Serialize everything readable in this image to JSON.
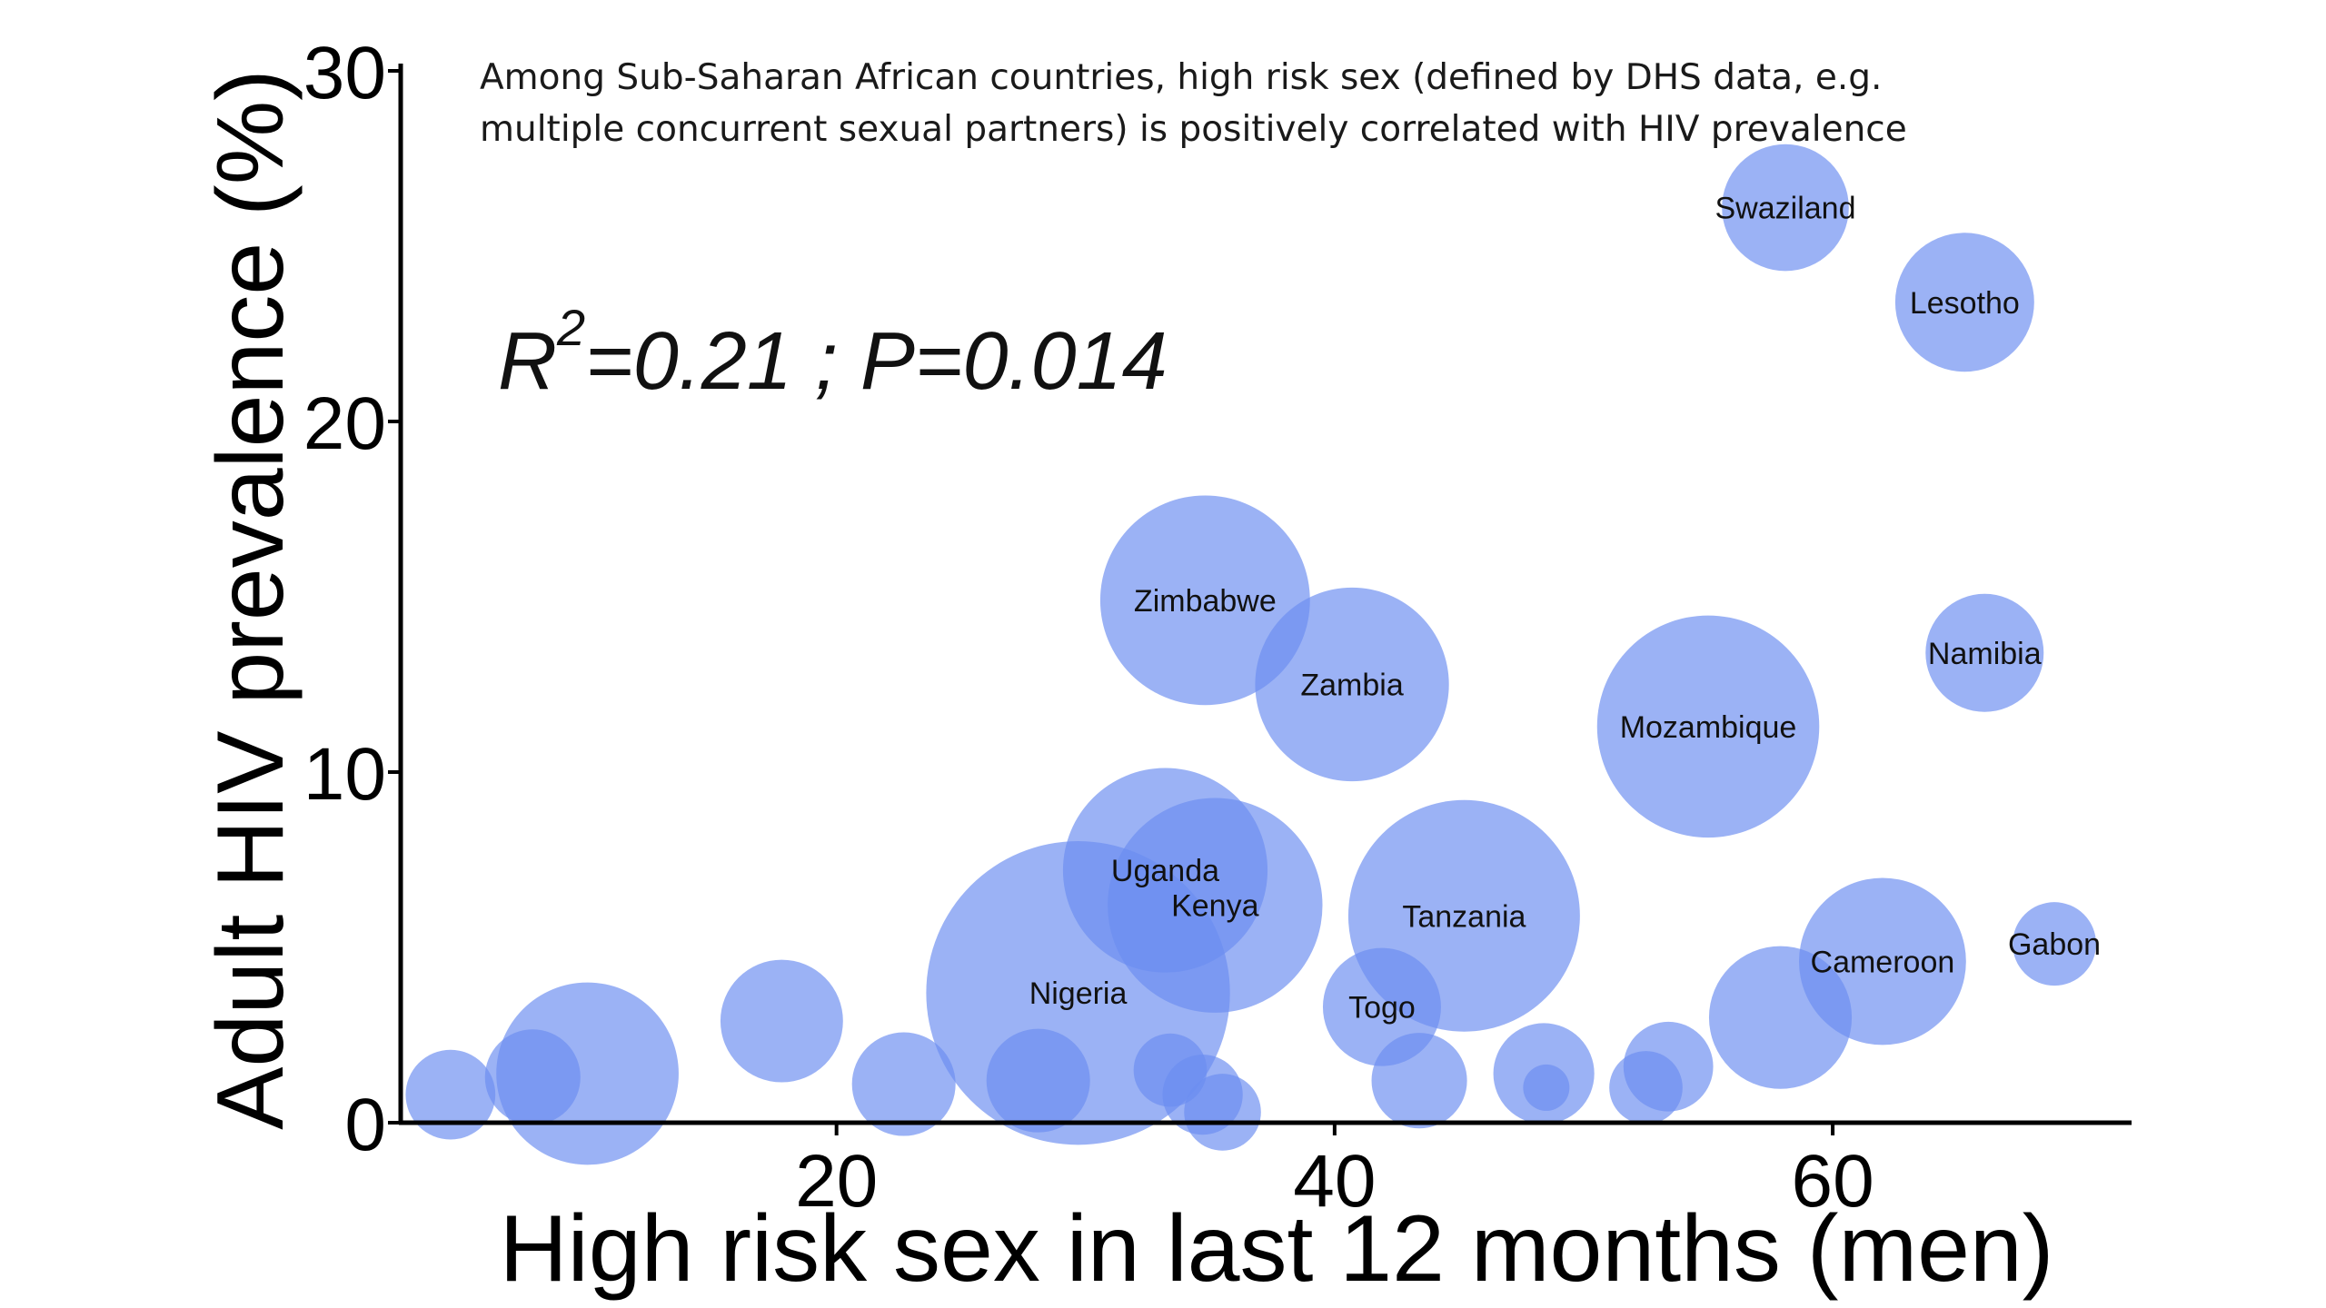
{
  "chart_data": {
    "type": "scatter",
    "title": "",
    "annotation_lines": [
      "Among Sub-Saharan African countries, high risk sex (defined by DHS data, e.g.",
      "multiple concurrent sexual partners) is positively correlated with HIV prevalence"
    ],
    "stat_r": "R",
    "stat_exp": "2",
    "stat_rest": "=0.21 ; P=0.014",
    "xlabel": "High risk sex in last 12 months (men)",
    "ylabel": "Adult HIV prevalence (%)",
    "xlim": [
      2.5,
      72
    ],
    "ylim": [
      0,
      30
    ],
    "x_ticks": [
      20,
      40,
      60
    ],
    "y_ticks": [
      0,
      10,
      20,
      30
    ],
    "bubble_color": "#6b8ef0",
    "bubble_opacity": 0.68,
    "points": [
      {
        "label": "Swaziland",
        "x": 58.1,
        "y": 26.1,
        "size": 1.5
      },
      {
        "label": "Lesotho",
        "x": 65.3,
        "y": 23.4,
        "size": 1.8
      },
      {
        "label": "Zimbabwe",
        "x": 34.8,
        "y": 14.9,
        "size": 4.1
      },
      {
        "label": "Zambia",
        "x": 40.7,
        "y": 12.5,
        "size": 3.5
      },
      {
        "label": "Mozambique",
        "x": 55.0,
        "y": 11.3,
        "size": 4.6
      },
      {
        "label": "Namibia",
        "x": 66.1,
        "y": 13.4,
        "size": 1.3
      },
      {
        "label": "Uganda",
        "x": 33.2,
        "y": 7.2,
        "size": 3.9
      },
      {
        "label": "Kenya",
        "x": 35.2,
        "y": 6.2,
        "size": 4.3
      },
      {
        "label": "Tanzania",
        "x": 45.2,
        "y": 5.9,
        "size": 5.0
      },
      {
        "label": "Nigeria",
        "x": 29.7,
        "y": 3.7,
        "size": 8.6
      },
      {
        "label": "Togo",
        "x": 41.9,
        "y": 3.3,
        "size": 1.3
      },
      {
        "label": "Cameroon",
        "x": 62.0,
        "y": 4.6,
        "size": 2.6
      },
      {
        "label": "Gabon",
        "x": 68.9,
        "y": 5.1,
        "size": 0.65
      },
      {
        "label": "",
        "x": 4.5,
        "y": 0.8,
        "size": 0.75
      },
      {
        "label": "",
        "x": 7.8,
        "y": 1.3,
        "size": 0.85
      },
      {
        "label": "",
        "x": 10.0,
        "y": 1.4,
        "size": 3.1
      },
      {
        "label": "",
        "x": 17.8,
        "y": 2.9,
        "size": 1.4
      },
      {
        "label": "",
        "x": 22.7,
        "y": 1.1,
        "size": 1.0
      },
      {
        "label": "",
        "x": 28.1,
        "y": 1.2,
        "size": 1.0
      },
      {
        "label": "",
        "x": 33.4,
        "y": 1.5,
        "size": 0.5
      },
      {
        "label": "",
        "x": 34.7,
        "y": 0.8,
        "size": 0.6
      },
      {
        "label": "",
        "x": 35.5,
        "y": 0.3,
        "size": 0.55
      },
      {
        "label": "",
        "x": 43.4,
        "y": 1.2,
        "size": 0.85
      },
      {
        "label": "",
        "x": 48.4,
        "y": 1.4,
        "size": 0.95
      },
      {
        "label": "",
        "x": 48.5,
        "y": 1.0,
        "size": 0.2
      },
      {
        "label": "",
        "x": 52.5,
        "y": 1.0,
        "size": 0.5
      },
      {
        "label": "",
        "x": 53.4,
        "y": 1.6,
        "size": 0.75
      },
      {
        "label": "",
        "x": 57.9,
        "y": 3.0,
        "size": 1.9
      }
    ]
  }
}
